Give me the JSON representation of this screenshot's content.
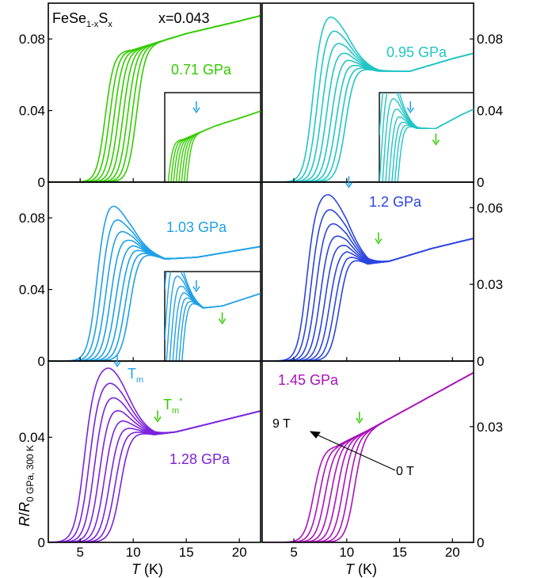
{
  "figure": {
    "sample": "FeSe",
    "sample_sub": "1-x",
    "sample_s": "S",
    "sample_sub2": "x",
    "composition": "x=0.043",
    "ylabel_R": "R",
    "ylabel_slash": "/",
    "ylabel_R2": "R",
    "ylabel_sub": "0 GPa, 300 K",
    "xlabel_T": "T",
    "xlabel_unit": " (K)",
    "tm_label": "T",
    "tm_sub": "m",
    "tmstar_label": "T",
    "tmstar_sub": "m",
    "tmstar_sup": "*",
    "field_high": "9 T",
    "field_low": "0 T"
  },
  "colors": {
    "p071": "#33cc00",
    "p095": "#22c5c5",
    "p103": "#1ea0e8",
    "p120": "#2b45e0",
    "p128": "#7b22dd",
    "p145": "#aa11bb",
    "arrow_tm": "#1ea0e8",
    "arrow_tmstar": "#33cc00"
  },
  "chart_data": [
    {
      "type": "line",
      "pressure": "0.71 GPa",
      "color_key": "p071",
      "xlim": [
        2,
        22
      ],
      "ylim": [
        0,
        0.1
      ],
      "ytick_side": "left",
      "yticks": [
        0,
        0.04,
        0.08
      ],
      "ytick_labels": [
        "0",
        "0.04",
        "0.08"
      ],
      "xticks": [
        5,
        10,
        15,
        20
      ],
      "xtick_labels": [],
      "curves": 8,
      "onset_0T": 11.5,
      "onset_shift_per_curve": 0.42,
      "transition_width": 2.4,
      "normal_state": [
        [
          2,
          0.07
        ],
        [
          10,
          0.074
        ],
        [
          15,
          0.083
        ],
        [
          20,
          0.09
        ],
        [
          22,
          0.093
        ]
      ],
      "peak_height": 0,
      "peak_T": 0,
      "inset": true,
      "inset_arrows": [
        "arrow_tm"
      ]
    },
    {
      "type": "line",
      "pressure": "0.95 GPa",
      "color_key": "p095",
      "xlim": [
        2,
        22
      ],
      "ylim": [
        0,
        0.1
      ],
      "ytick_side": "right",
      "yticks": [
        0,
        0.04,
        0.08
      ],
      "ytick_labels": [
        "0",
        "0.04",
        "0.08"
      ],
      "xticks": [
        5,
        10,
        15,
        20
      ],
      "xtick_labels": [],
      "curves": 8,
      "onset_0T": 11.2,
      "onset_shift_per_curve": 0.45,
      "transition_width": 2.6,
      "normal_state": [
        [
          2,
          0.06
        ],
        [
          10,
          0.066
        ],
        [
          13,
          0.062
        ],
        [
          16,
          0.062
        ],
        [
          20,
          0.069
        ],
        [
          22,
          0.072
        ]
      ],
      "peak_height": 0.03,
      "peak_T": 8,
      "inset": true,
      "inset_arrows": [
        "arrow_tm",
        "arrow_tmstar"
      ]
    },
    {
      "type": "line",
      "pressure": "1.03 GPa",
      "color_key": "p103",
      "xlim": [
        2,
        22
      ],
      "ylim": [
        0,
        0.1
      ],
      "ytick_side": "left",
      "yticks": [
        0,
        0.04,
        0.08
      ],
      "ytick_labels": [
        "0",
        "0.04",
        "0.08"
      ],
      "xticks": [
        5,
        10,
        15,
        20
      ],
      "xtick_labels": [],
      "curves": 8,
      "onset_0T": 11.0,
      "onset_shift_per_curve": 0.45,
      "transition_width": 2.6,
      "normal_state": [
        [
          2,
          0.06
        ],
        [
          10,
          0.063
        ],
        [
          13,
          0.057
        ],
        [
          16,
          0.058
        ],
        [
          20,
          0.062
        ],
        [
          22,
          0.064
        ]
      ],
      "peak_height": 0.028,
      "peak_T": 7.5,
      "inset": true,
      "inset_arrows": [
        "arrow_tm",
        "arrow_tmstar"
      ]
    },
    {
      "type": "line",
      "pressure": "1.2 GPa",
      "color_key": "p120",
      "xlim": [
        2,
        22
      ],
      "ylim": [
        0,
        0.07
      ],
      "ytick_side": "right",
      "yticks": [
        0,
        0.03,
        0.06
      ],
      "ytick_labels": [
        "0",
        "0.03",
        "0.06"
      ],
      "xticks": [
        5,
        10,
        15,
        20
      ],
      "xtick_labels": [],
      "curves": 8,
      "onset_0T": 10.6,
      "onset_shift_per_curve": 0.45,
      "transition_width": 2.6,
      "normal_state": [
        [
          2,
          0.041
        ],
        [
          10,
          0.042
        ],
        [
          12,
          0.038
        ],
        [
          14,
          0.039
        ],
        [
          18,
          0.044
        ],
        [
          22,
          0.048
        ]
      ],
      "peak_height": 0.024,
      "peak_T": 8,
      "inset": false,
      "arrows": [
        {
          "color_key": "arrow_tm",
          "T": 10.2,
          "y": 0.068
        },
        {
          "color_key": "arrow_tmstar",
          "T": 13,
          "y": 0.046
        }
      ]
    },
    {
      "type": "line",
      "pressure": "1.28 GPa",
      "color_key": "p128",
      "xlim": [
        2,
        22
      ],
      "ylim": [
        0,
        0.069
      ],
      "ytick_side": "left",
      "yticks": [
        0,
        0.04
      ],
      "ytick_labels": [
        "0",
        "0.04"
      ],
      "xticks": [
        5,
        10,
        15,
        20
      ],
      "xtick_labels": [
        "5",
        "10",
        "15",
        "20"
      ],
      "curves": 8,
      "onset_0T": 10.2,
      "onset_shift_per_curve": 0.5,
      "transition_width": 2.8,
      "normal_state": [
        [
          2,
          0.042
        ],
        [
          9,
          0.043
        ],
        [
          12,
          0.041
        ],
        [
          14,
          0.042
        ],
        [
          18,
          0.046
        ],
        [
          22,
          0.05
        ]
      ],
      "peak_height": 0.024,
      "peak_T": 7.5,
      "inset": false,
      "arrows": [
        {
          "color_key": "arrow_tm",
          "T": 8.5,
          "y": 0.067
        },
        {
          "color_key": "arrow_tmstar",
          "T": 12.3,
          "y": 0.046
        }
      ]
    },
    {
      "type": "line",
      "pressure": "1.45 GPa",
      "color_key": "p145",
      "xlim": [
        2,
        22
      ],
      "ylim": [
        0,
        0.047
      ],
      "ytick_side": "right",
      "yticks": [
        0,
        0.03
      ],
      "ytick_labels": [
        "0",
        "0.03"
      ],
      "xticks": [
        5,
        10,
        15,
        20
      ],
      "xtick_labels": [
        "5",
        "10",
        "15",
        "20"
      ],
      "curves": 8,
      "onset_0T": 12.0,
      "onset_shift_per_curve": 0.55,
      "transition_width": 2.6,
      "normal_state": [
        [
          2,
          0.022
        ],
        [
          9,
          0.025
        ],
        [
          12,
          0.029
        ],
        [
          16,
          0.035
        ],
        [
          20,
          0.041
        ],
        [
          22,
          0.044
        ]
      ],
      "peak_height": 0,
      "peak_T": 0,
      "inset": false,
      "arrows": [
        {
          "color_key": "arrow_tmstar",
          "T": 11.2,
          "y": 0.031
        }
      ],
      "field_arrow": true
    }
  ]
}
